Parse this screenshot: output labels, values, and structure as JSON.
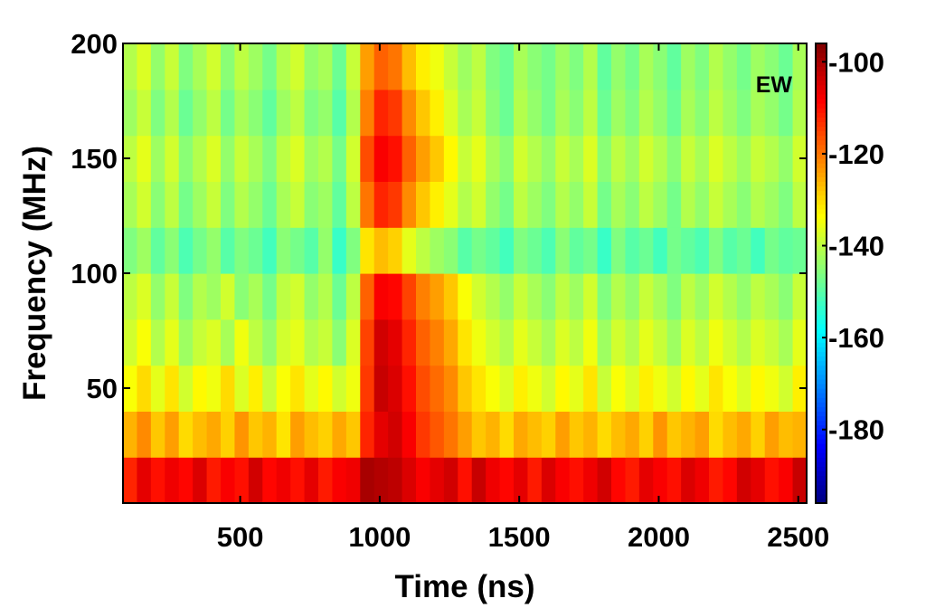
{
  "chart_data": {
    "type": "heatmap",
    "title": "",
    "panel_label": "EW",
    "xlabel": "Time (ns)",
    "ylabel": "Frequency (MHz)",
    "xlim": [
      80,
      2530
    ],
    "ylim": [
      0,
      200
    ],
    "xticks": [
      500,
      1000,
      1500,
      2000,
      2500
    ],
    "yticks": [
      50,
      100,
      150,
      200
    ],
    "colormap": "jet",
    "colorbar": {
      "range": [
        -196,
        -96
      ],
      "ticks": [
        -100,
        -120,
        -140,
        -160,
        -180
      ]
    },
    "x_bins": [
      80,
      130,
      180,
      230,
      280,
      330,
      380,
      430,
      480,
      530,
      580,
      630,
      680,
      730,
      780,
      830,
      880,
      930,
      980,
      1030,
      1080,
      1130,
      1180,
      1230,
      1280,
      1330,
      1380,
      1430,
      1480,
      1530,
      1580,
      1630,
      1680,
      1730,
      1780,
      1830,
      1880,
      1930,
      1980,
      2030,
      2080,
      2130,
      2180,
      2230,
      2280,
      2330,
      2380,
      2430,
      2480,
      2530
    ],
    "y_bins": [
      0,
      20,
      40,
      60,
      80,
      100,
      120,
      140,
      160,
      180,
      200
    ],
    "power_dB": [
      [
        -112,
        -106,
        -110,
        -107,
        -109,
        -105,
        -111,
        -108,
        -110,
        -104,
        -109,
        -107,
        -110,
        -106,
        -111,
        -108,
        -107,
        -100,
        -101,
        -102,
        -105,
        -108,
        -106,
        -104,
        -110,
        -103,
        -107,
        -109,
        -106,
        -111,
        -105,
        -108,
        -110,
        -107,
        -104,
        -109,
        -111,
        -106,
        -108,
        -110,
        -105,
        -107,
        -111,
        -109,
        -104,
        -106,
        -110,
        -108,
        -103,
        -108
      ],
      [
        -126,
        -122,
        -128,
        -124,
        -130,
        -127,
        -125,
        -129,
        -123,
        -128,
        -126,
        -131,
        -124,
        -127,
        -129,
        -125,
        -128,
        -112,
        -106,
        -104,
        -108,
        -114,
        -117,
        -120,
        -124,
        -128,
        -126,
        -130,
        -125,
        -127,
        -129,
        -124,
        -128,
        -126,
        -130,
        -127,
        -125,
        -129,
        -123,
        -128,
        -126,
        -124,
        -130,
        -127,
        -125,
        -129,
        -124,
        -127,
        -126,
        -128
      ],
      [
        -134,
        -130,
        -136,
        -131,
        -138,
        -133,
        -135,
        -130,
        -137,
        -132,
        -139,
        -134,
        -131,
        -136,
        -133,
        -138,
        -135,
        -114,
        -103,
        -105,
        -110,
        -116,
        -119,
        -122,
        -128,
        -131,
        -134,
        -137,
        -132,
        -135,
        -138,
        -133,
        -136,
        -131,
        -139,
        -134,
        -137,
        -132,
        -135,
        -138,
        -133,
        -136,
        -131,
        -134,
        -137,
        -133,
        -135,
        -138,
        -132,
        -135
      ],
      [
        -138,
        -134,
        -141,
        -136,
        -143,
        -139,
        -137,
        -142,
        -135,
        -140,
        -144,
        -138,
        -136,
        -141,
        -139,
        -145,
        -137,
        -115,
        -104,
        -106,
        -112,
        -118,
        -121,
        -125,
        -131,
        -135,
        -138,
        -141,
        -136,
        -139,
        -142,
        -137,
        -140,
        -135,
        -143,
        -138,
        -141,
        -136,
        -139,
        -143,
        -137,
        -140,
        -135,
        -138,
        -141,
        -137,
        -139,
        -142,
        -136,
        -139
      ],
      [
        -140,
        -137,
        -144,
        -139,
        -146,
        -141,
        -143,
        -138,
        -145,
        -142,
        -147,
        -140,
        -138,
        -144,
        -141,
        -148,
        -140,
        -118,
        -108,
        -109,
        -115,
        -121,
        -124,
        -128,
        -134,
        -138,
        -141,
        -144,
        -139,
        -142,
        -145,
        -140,
        -143,
        -138,
        -146,
        -141,
        -144,
        -139,
        -142,
        -146,
        -140,
        -143,
        -138,
        -141,
        -144,
        -140,
        -142,
        -145,
        -139,
        -142
      ],
      [
        -146,
        -143,
        -149,
        -145,
        -151,
        -147,
        -144,
        -150,
        -146,
        -148,
        -152,
        -145,
        -147,
        -150,
        -144,
        -153,
        -146,
        -131,
        -127,
        -129,
        -136,
        -140,
        -143,
        -145,
        -150,
        -147,
        -149,
        -152,
        -146,
        -148,
        -151,
        -145,
        -149,
        -147,
        -153,
        -146,
        -150,
        -148,
        -152,
        -147,
        -149,
        -151,
        -146,
        -150,
        -148,
        -152,
        -147,
        -149,
        -148,
        -150
      ],
      [
        -142,
        -138,
        -145,
        -140,
        -147,
        -143,
        -139,
        -146,
        -141,
        -144,
        -148,
        -142,
        -139,
        -145,
        -143,
        -149,
        -140,
        -120,
        -112,
        -114,
        -122,
        -128,
        -132,
        -136,
        -141,
        -138,
        -144,
        -147,
        -140,
        -143,
        -146,
        -141,
        -144,
        -139,
        -147,
        -142,
        -145,
        -140,
        -143,
        -147,
        -141,
        -144,
        -139,
        -142,
        -145,
        -141,
        -143,
        -146,
        -140,
        -143
      ],
      [
        -140,
        -136,
        -143,
        -138,
        -145,
        -141,
        -137,
        -144,
        -139,
        -142,
        -146,
        -140,
        -137,
        -143,
        -141,
        -147,
        -138,
        -116,
        -108,
        -110,
        -118,
        -124,
        -128,
        -133,
        -139,
        -136,
        -142,
        -145,
        -138,
        -141,
        -144,
        -139,
        -142,
        -137,
        -145,
        -140,
        -143,
        -138,
        -141,
        -145,
        -139,
        -142,
        -137,
        -140,
        -143,
        -139,
        -141,
        -144,
        -138,
        -141
      ],
      [
        -143,
        -139,
        -146,
        -141,
        -148,
        -144,
        -140,
        -147,
        -142,
        -145,
        -149,
        -143,
        -140,
        -146,
        -144,
        -150,
        -141,
        -121,
        -112,
        -114,
        -122,
        -128,
        -132,
        -137,
        -142,
        -139,
        -145,
        -148,
        -141,
        -144,
        -147,
        -142,
        -145,
        -140,
        -148,
        -143,
        -146,
        -141,
        -144,
        -148,
        -142,
        -145,
        -140,
        -143,
        -146,
        -142,
        -144,
        -147,
        -141,
        -144
      ],
      [
        -141,
        -137,
        -144,
        -139,
        -146,
        -142,
        -138,
        -145,
        -140,
        -143,
        -147,
        -141,
        -138,
        -144,
        -142,
        -148,
        -139,
        -124,
        -118,
        -120,
        -127,
        -132,
        -135,
        -139,
        -143,
        -140,
        -146,
        -148,
        -142,
        -145,
        -147,
        -143,
        -146,
        -141,
        -149,
        -144,
        -147,
        -142,
        -145,
        -149,
        -143,
        -146,
        -141,
        -144,
        -147,
        -143,
        -145,
        -148,
        -142,
        -145
      ]
    ]
  }
}
